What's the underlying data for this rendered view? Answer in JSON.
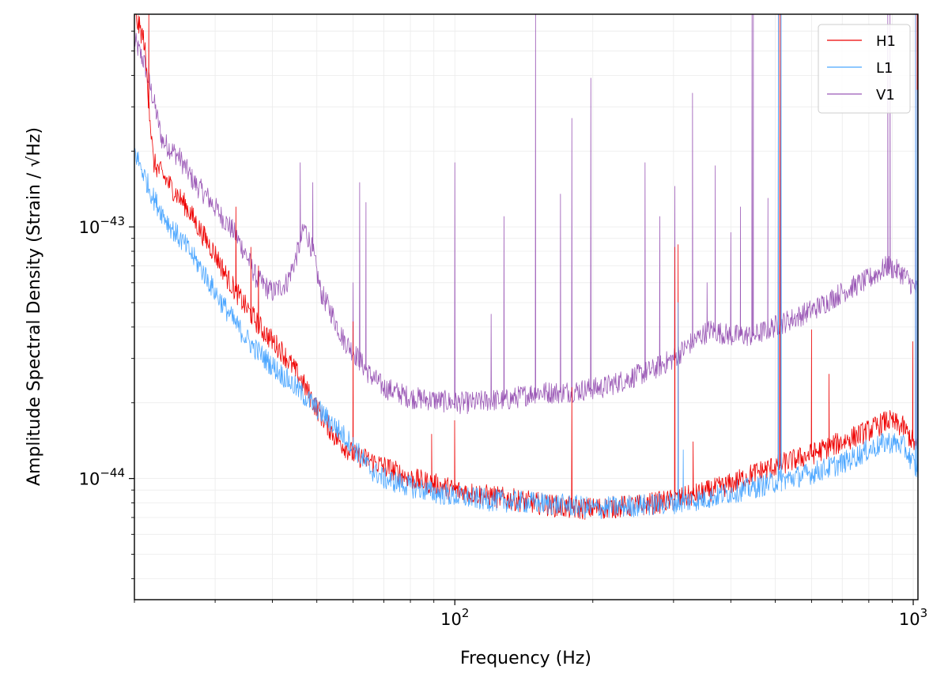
{
  "chart_data": {
    "type": "line",
    "title": "",
    "xlabel": "Frequency (Hz)",
    "ylabel": "Amplitude Spectral Density (Strain / √Hz)",
    "xscale": "log",
    "yscale": "log",
    "xlim": [
      20,
      1024
    ],
    "ylim": [
      3.3e-45,
      7e-43
    ],
    "grid": true,
    "legend_position": "top-right",
    "x_ticks": [
      {
        "value": 100,
        "base": "10",
        "exp": "2"
      },
      {
        "value": 1000,
        "base": "10",
        "exp": "3"
      }
    ],
    "y_ticks": [
      {
        "value": 1e-44,
        "base": "10",
        "exp": "−44"
      },
      {
        "value": 1e-43,
        "base": "10",
        "exp": "−43"
      }
    ],
    "series": [
      {
        "name": "H1",
        "color": "#ee0000",
        "points": [
          [
            20,
            7e-43
          ],
          [
            21,
            5.5e-43
          ],
          [
            22,
            1.8e-43
          ],
          [
            24,
            1.45e-43
          ],
          [
            26,
            1.2e-43
          ],
          [
            28,
            9.5e-44
          ],
          [
            30,
            7.8e-44
          ],
          [
            32,
            6.2e-44
          ],
          [
            35,
            4.8e-44
          ],
          [
            38,
            3.9e-44
          ],
          [
            42,
            3.2e-44
          ],
          [
            46,
            2.5e-44
          ],
          [
            50,
            1.9e-44
          ],
          [
            55,
            1.45e-44
          ],
          [
            60,
            1.25e-44
          ],
          [
            70,
            1.12e-44
          ],
          [
            80,
            1e-44
          ],
          [
            90,
            9.5e-45
          ],
          [
            100,
            9e-45
          ],
          [
            120,
            8.5e-45
          ],
          [
            150,
            8e-45
          ],
          [
            180,
            7.6e-45
          ],
          [
            200,
            7.6e-45
          ],
          [
            250,
            7.8e-45
          ],
          [
            300,
            8.2e-45
          ],
          [
            350,
            8.8e-45
          ],
          [
            400,
            9.5e-45
          ],
          [
            450,
            1.05e-44
          ],
          [
            500,
            1.12e-44
          ],
          [
            600,
            1.25e-44
          ],
          [
            700,
            1.4e-44
          ],
          [
            800,
            1.55e-44
          ],
          [
            880,
            1.7e-44
          ],
          [
            950,
            1.6e-44
          ],
          [
            1000,
            1.4e-44
          ],
          [
            1024,
            1.3e-44
          ]
        ],
        "spikes": [
          [
            21.5,
            7e-43
          ],
          [
            33.3,
            1.2e-43
          ],
          [
            35.9,
            8.3e-44
          ],
          [
            37.3,
            7e-44
          ],
          [
            40.9,
            3.6e-44
          ],
          [
            60,
            4.2e-44
          ],
          [
            89,
            1.5e-44
          ],
          [
            99.9,
            1.7e-44
          ],
          [
            180,
            2.3e-44
          ],
          [
            302,
            8.3e-44
          ],
          [
            307,
            8.5e-44
          ],
          [
            331,
            1.4e-44
          ],
          [
            508,
            7e-43
          ],
          [
            512,
            7e-43
          ],
          [
            600,
            3.9e-44
          ],
          [
            655,
            2.6e-44
          ],
          [
            998,
            3.5e-44
          ],
          [
            1012,
            7e-43
          ],
          [
            1020,
            7e-43
          ]
        ]
      },
      {
        "name": "L1",
        "color": "#4ba6ff",
        "points": [
          [
            20,
            2e-43
          ],
          [
            22,
            1.3e-43
          ],
          [
            24,
            1e-43
          ],
          [
            26,
            8.3e-44
          ],
          [
            28,
            6.8e-44
          ],
          [
            30,
            5.5e-44
          ],
          [
            33,
            4.2e-44
          ],
          [
            36,
            3.4e-44
          ],
          [
            40,
            2.8e-44
          ],
          [
            45,
            2.3e-44
          ],
          [
            50,
            1.9e-44
          ],
          [
            55,
            1.6e-44
          ],
          [
            60,
            1.35e-44
          ],
          [
            65,
            1.1e-44
          ],
          [
            70,
            1e-44
          ],
          [
            80,
            9.3e-45
          ],
          [
            90,
            8.8e-45
          ],
          [
            100,
            8.5e-45
          ],
          [
            120,
            8.2e-45
          ],
          [
            150,
            8e-45
          ],
          [
            180,
            7.8e-45
          ],
          [
            200,
            7.6e-45
          ],
          [
            250,
            7.8e-45
          ],
          [
            300,
            8e-45
          ],
          [
            350,
            8.3e-45
          ],
          [
            400,
            8.8e-45
          ],
          [
            450,
            9.2e-45
          ],
          [
            500,
            9.7e-45
          ],
          [
            600,
            1.05e-44
          ],
          [
            700,
            1.15e-44
          ],
          [
            800,
            1.3e-44
          ],
          [
            880,
            1.4e-44
          ],
          [
            950,
            1.35e-44
          ],
          [
            1000,
            1.15e-44
          ],
          [
            1024,
            1.05e-44
          ]
        ],
        "spikes": [
          [
            60,
            1.4e-44
          ],
          [
            307,
            5e-44
          ],
          [
            315,
            1.3e-44
          ],
          [
            508,
            7e-43
          ],
          [
            515,
            7e-43
          ],
          [
            1012,
            7e-43
          ],
          [
            1020,
            3.5e-43
          ]
        ]
      },
      {
        "name": "V1",
        "color": "#9b59b6",
        "points": [
          [
            20,
            5.5e-43
          ],
          [
            21,
            4.5e-43
          ],
          [
            22,
            3.2e-43
          ],
          [
            23,
            2.2e-43
          ],
          [
            25,
            1.9e-43
          ],
          [
            27,
            1.5e-43
          ],
          [
            29,
            1.3e-43
          ],
          [
            31,
            1.1e-43
          ],
          [
            33,
            9.5e-44
          ],
          [
            35,
            7.8e-44
          ],
          [
            37,
            6.2e-44
          ],
          [
            40,
            5.5e-44
          ],
          [
            43,
            6e-44
          ],
          [
            45,
            7.5e-44
          ],
          [
            47,
            1e-43
          ],
          [
            49,
            8e-44
          ],
          [
            51,
            5.5e-44
          ],
          [
            54,
            4.5e-44
          ],
          [
            57,
            3.6e-44
          ],
          [
            60,
            3.2e-44
          ],
          [
            65,
            2.6e-44
          ],
          [
            70,
            2.3e-44
          ],
          [
            80,
            2.1e-44
          ],
          [
            90,
            2.05e-44
          ],
          [
            100,
            2e-44
          ],
          [
            110,
            2e-44
          ],
          [
            120,
            2.05e-44
          ],
          [
            130,
            2.05e-44
          ],
          [
            150,
            2.2e-44
          ],
          [
            170,
            2.2e-44
          ],
          [
            190,
            2.25e-44
          ],
          [
            210,
            2.3e-44
          ],
          [
            240,
            2.5e-44
          ],
          [
            270,
            2.7e-44
          ],
          [
            300,
            3e-44
          ],
          [
            330,
            3.5e-44
          ],
          [
            360,
            3.9e-44
          ],
          [
            400,
            3.7e-44
          ],
          [
            450,
            3.7e-44
          ],
          [
            510,
            4.1e-44
          ],
          [
            560,
            4.4e-44
          ],
          [
            620,
            4.8e-44
          ],
          [
            700,
            5.5e-44
          ],
          [
            800,
            6.2e-44
          ],
          [
            880,
            7e-44
          ],
          [
            950,
            6.5e-44
          ],
          [
            1000,
            5.8e-44
          ],
          [
            1024,
            5.5e-44
          ]
        ],
        "spikes": [
          [
            46,
            1.8e-43
          ],
          [
            49,
            1.5e-43
          ],
          [
            60,
            6e-44
          ],
          [
            62,
            1.5e-43
          ],
          [
            64,
            1.25e-43
          ],
          [
            100,
            1.8e-43
          ],
          [
            120,
            4.5e-44
          ],
          [
            128,
            1.1e-43
          ],
          [
            150,
            7e-43
          ],
          [
            170,
            1.35e-43
          ],
          [
            180,
            2.7e-43
          ],
          [
            198,
            3.9e-43
          ],
          [
            260,
            1.8e-43
          ],
          [
            280,
            1.1e-43
          ],
          [
            302,
            1.45e-43
          ],
          [
            330,
            3.4e-43
          ],
          [
            355,
            6e-44
          ],
          [
            370,
            1.75e-43
          ],
          [
            400,
            9.5e-44
          ],
          [
            420,
            1.2e-43
          ],
          [
            445,
            7e-43
          ],
          [
            448,
            7e-43
          ],
          [
            482,
            1.3e-43
          ],
          [
            508,
            7e-43
          ],
          [
            515,
            7e-43
          ],
          [
            880,
            7e-43
          ],
          [
            890,
            7e-43
          ],
          [
            1012,
            7e-43
          ]
        ]
      }
    ]
  }
}
